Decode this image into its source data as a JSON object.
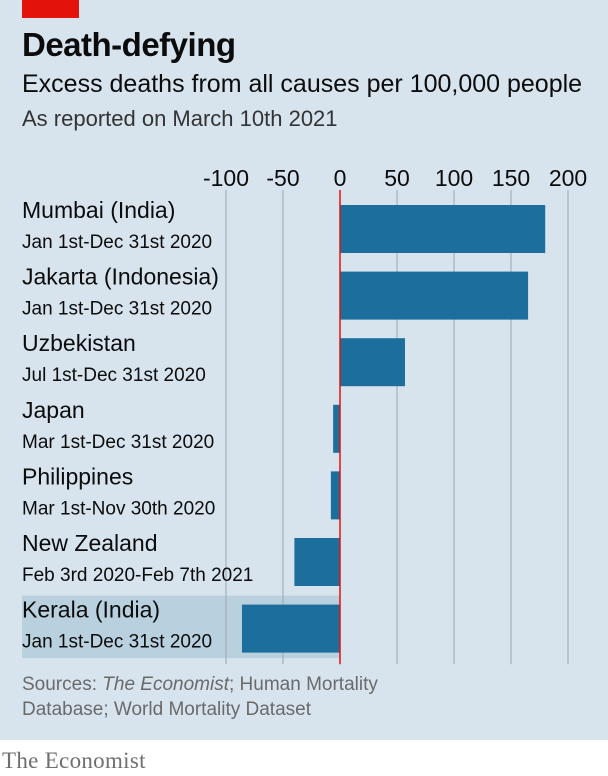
{
  "header": {
    "title": "Death-defying",
    "subtitle": "Excess deaths from all causes per 100,000 people",
    "note": "As reported on March 10th 2021"
  },
  "footer": {
    "source_prefix": "Sources: ",
    "source_italic": "The Economist",
    "source_rest": "; Human Mortality Database; World Mortality Dataset",
    "brand": "The Economist"
  },
  "colors": {
    "background": "#d7e4ee",
    "bar": "#1c6e9d",
    "zero_line": "#e3120b",
    "highlight": "#b9d0df",
    "accent": "#e3120b"
  },
  "chart_data": {
    "type": "bar",
    "orientation": "horizontal",
    "title": "Death-defying",
    "subtitle": "Excess deaths from all causes per 100,000 people",
    "xlim": [
      -100,
      200
    ],
    "xticks": [
      -100,
      -50,
      0,
      50,
      100,
      150,
      200
    ],
    "grid": true,
    "categories": [
      "Mumbai (India)",
      "Jakarta (Indonesia)",
      "Uzbekistan",
      "Japan",
      "Philippines",
      "New Zealand",
      "Kerala (India)"
    ],
    "periods": [
      "Jan 1st-Dec 31st 2020",
      "Jan 1st-Dec 31st 2020",
      "Jul 1st-Dec 31st 2020",
      "Mar 1st-Dec 31st 2020",
      "Mar 1st-Nov 30th 2020",
      "Feb 3rd 2020-Feb 7th 2021",
      "Jan 1st-Dec 31st 2020"
    ],
    "values": [
      180,
      165,
      57,
      -6,
      -8,
      -40,
      -86
    ],
    "highlighted": "Kerala (India)"
  }
}
